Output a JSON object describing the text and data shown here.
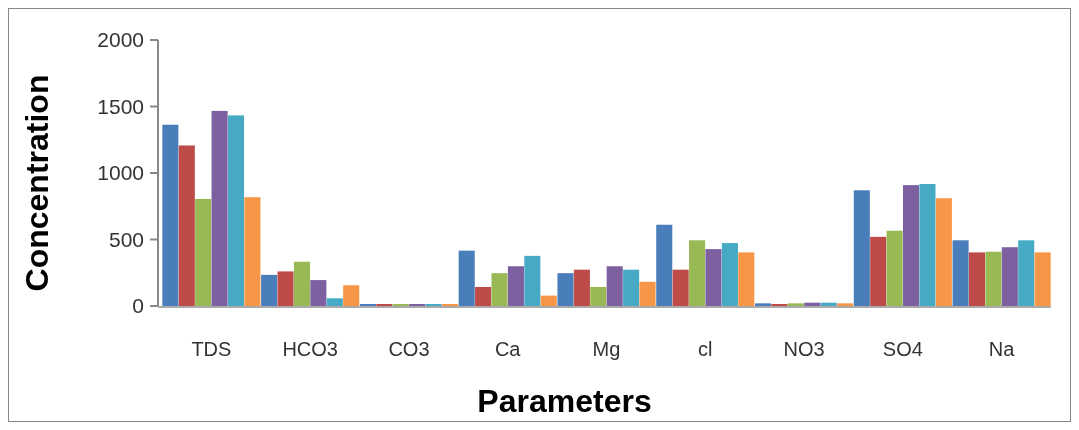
{
  "chart_data": {
    "type": "bar",
    "xlabel": "Parameters",
    "ylabel": "Concentration",
    "categories": [
      "TDS",
      "HCO3",
      "CO3",
      "Ca",
      "Mg",
      "cl",
      "NO3",
      "SO4",
      "Na"
    ],
    "series": [
      {
        "color": "#4a7ebb",
        "values": [
          1363,
          234,
          15,
          416,
          247,
          611,
          20,
          870,
          494
        ]
      },
      {
        "color": "#be4b48",
        "values": [
          1207,
          260,
          15,
          143,
          273,
          273,
          15,
          520,
          403
        ]
      },
      {
        "color": "#98b954",
        "values": [
          805,
          333,
          15,
          247,
          143,
          494,
          20,
          566,
          408
        ]
      },
      {
        "color": "#7d60a0",
        "values": [
          1467,
          195,
          15,
          299,
          299,
          428,
          25,
          909,
          442
        ]
      },
      {
        "color": "#46aac5",
        "values": [
          1433,
          58,
          15,
          377,
          273,
          473,
          25,
          917,
          494
        ]
      },
      {
        "color": "#f79646",
        "values": [
          818,
          156,
          15,
          78,
          182,
          403,
          20,
          810,
          403
        ]
      }
    ],
    "ylim": [
      0,
      2000
    ],
    "yticks": [
      0,
      500,
      1000,
      1500,
      2000
    ],
    "grid": false
  }
}
